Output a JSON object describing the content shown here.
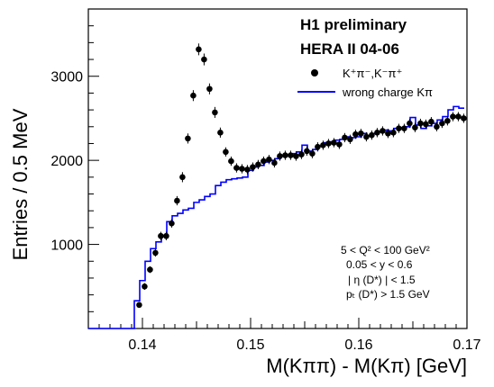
{
  "chart_data": {
    "type": "scatter",
    "title": "H1 preliminary",
    "subtitle": "HERA II 04-06",
    "xlabel": "M(Kππ) - M(Kπ) [GeV]",
    "ylabel": "Entries / 0.5 MeV",
    "xlim": [
      0.135,
      0.17
    ],
    "ylim": [
      0,
      3800
    ],
    "x_ticks": [
      0.14,
      0.15,
      0.16,
      0.17
    ],
    "x_tick_labels": [
      "0.14",
      "0.15",
      "0.16",
      "0.17"
    ],
    "y_ticks": [
      1000,
      2000,
      3000
    ],
    "y_tick_labels": [
      "1000",
      "2000",
      "3000"
    ],
    "grid": false,
    "legend": [
      {
        "label": "K⁺π⁻,K⁻π⁺",
        "marker": "dot",
        "color": "#000000"
      },
      {
        "label": "wrong charge Kπ",
        "marker": "line",
        "color": "#0000ff"
      }
    ],
    "annotations": [
      "5 < Q² < 100 GeV²",
      "0.05 < y < 0.6",
      "| η (D*) | < 1.5",
      "pₜ (D*) > 1.5 GeV"
    ],
    "series": [
      {
        "name": "K⁺π⁻,K⁻π⁺",
        "style": "points",
        "color": "#000000",
        "x": [
          0.1397,
          0.1402,
          0.1407,
          0.1412,
          0.1417,
          0.1422,
          0.1427,
          0.1432,
          0.1437,
          0.1442,
          0.1447,
          0.1452,
          0.1457,
          0.1462,
          0.1467,
          0.1472,
          0.1477,
          0.1482,
          0.1487,
          0.1492,
          0.1497,
          0.1502,
          0.1507,
          0.1512,
          0.1517,
          0.1522,
          0.1527,
          0.1532,
          0.1537,
          0.1542,
          0.1547,
          0.1552,
          0.1557,
          0.1562,
          0.1567,
          0.1572,
          0.1577,
          0.1582,
          0.1587,
          0.1592,
          0.1597,
          0.1602,
          0.1607,
          0.1612,
          0.1617,
          0.1622,
          0.1627,
          0.1632,
          0.1637,
          0.1642,
          0.1647,
          0.1652,
          0.1657,
          0.1662,
          0.1667,
          0.1672,
          0.1677,
          0.1682,
          0.1687,
          0.1692,
          0.1697
        ],
        "values": [
          280,
          500,
          700,
          900,
          1100,
          1100,
          1250,
          1520,
          1800,
          2260,
          2770,
          3320,
          3200,
          2850,
          2570,
          2330,
          2100,
          1990,
          1910,
          1900,
          1890,
          1920,
          1950,
          1990,
          2010,
          1970,
          2050,
          2060,
          2060,
          2050,
          2070,
          2110,
          2080,
          2160,
          2180,
          2200,
          2210,
          2190,
          2270,
          2250,
          2310,
          2320,
          2280,
          2300,
          2330,
          2350,
          2320,
          2330,
          2380,
          2380,
          2440,
          2390,
          2440,
          2430,
          2460,
          2400,
          2440,
          2470,
          2520,
          2520,
          2500
        ],
        "errors": [
          30,
          40,
          40,
          45,
          50,
          50,
          50,
          55,
          60,
          60,
          65,
          70,
          70,
          65,
          65,
          60,
          55,
          55,
          55,
          55,
          55,
          55,
          55,
          55,
          55,
          55,
          55,
          55,
          55,
          55,
          55,
          55,
          55,
          55,
          55,
          55,
          55,
          55,
          55,
          55,
          55,
          55,
          55,
          55,
          55,
          55,
          55,
          55,
          55,
          55,
          55,
          55,
          55,
          55,
          55,
          55,
          55,
          55,
          55,
          55,
          55
        ]
      },
      {
        "name": "wrong charge Kπ",
        "style": "step",
        "color": "#0000ff",
        "x": [
          0.1395,
          0.14,
          0.1405,
          0.141,
          0.1415,
          0.142,
          0.1425,
          0.143,
          0.1435,
          0.144,
          0.1445,
          0.145,
          0.1455,
          0.146,
          0.1465,
          0.147,
          0.1475,
          0.148,
          0.1485,
          0.149,
          0.1495,
          0.15,
          0.1505,
          0.151,
          0.1515,
          0.152,
          0.1525,
          0.153,
          0.1535,
          0.154,
          0.1545,
          0.155,
          0.1555,
          0.156,
          0.1565,
          0.157,
          0.1575,
          0.158,
          0.1585,
          0.159,
          0.1595,
          0.16,
          0.1605,
          0.161,
          0.1615,
          0.162,
          0.1625,
          0.163,
          0.1635,
          0.164,
          0.1645,
          0.165,
          0.1655,
          0.166,
          0.1665,
          0.167,
          0.1675,
          0.168,
          0.1685,
          0.169,
          0.1695
        ],
        "values": [
          330,
          570,
          800,
          950,
          1030,
          1100,
          1270,
          1340,
          1370,
          1410,
          1430,
          1500,
          1530,
          1570,
          1600,
          1700,
          1740,
          1770,
          1780,
          1790,
          1800,
          1880,
          1920,
          1940,
          1980,
          2000,
          2020,
          2050,
          2060,
          2080,
          2100,
          2180,
          2110,
          2130,
          2170,
          2210,
          2220,
          2240,
          2250,
          2280,
          2270,
          2280,
          2320,
          2290,
          2320,
          2340,
          2360,
          2350,
          2380,
          2390,
          2400,
          2510,
          2420,
          2380,
          2410,
          2440,
          2480,
          2520,
          2600,
          2640,
          2620
        ]
      }
    ]
  }
}
